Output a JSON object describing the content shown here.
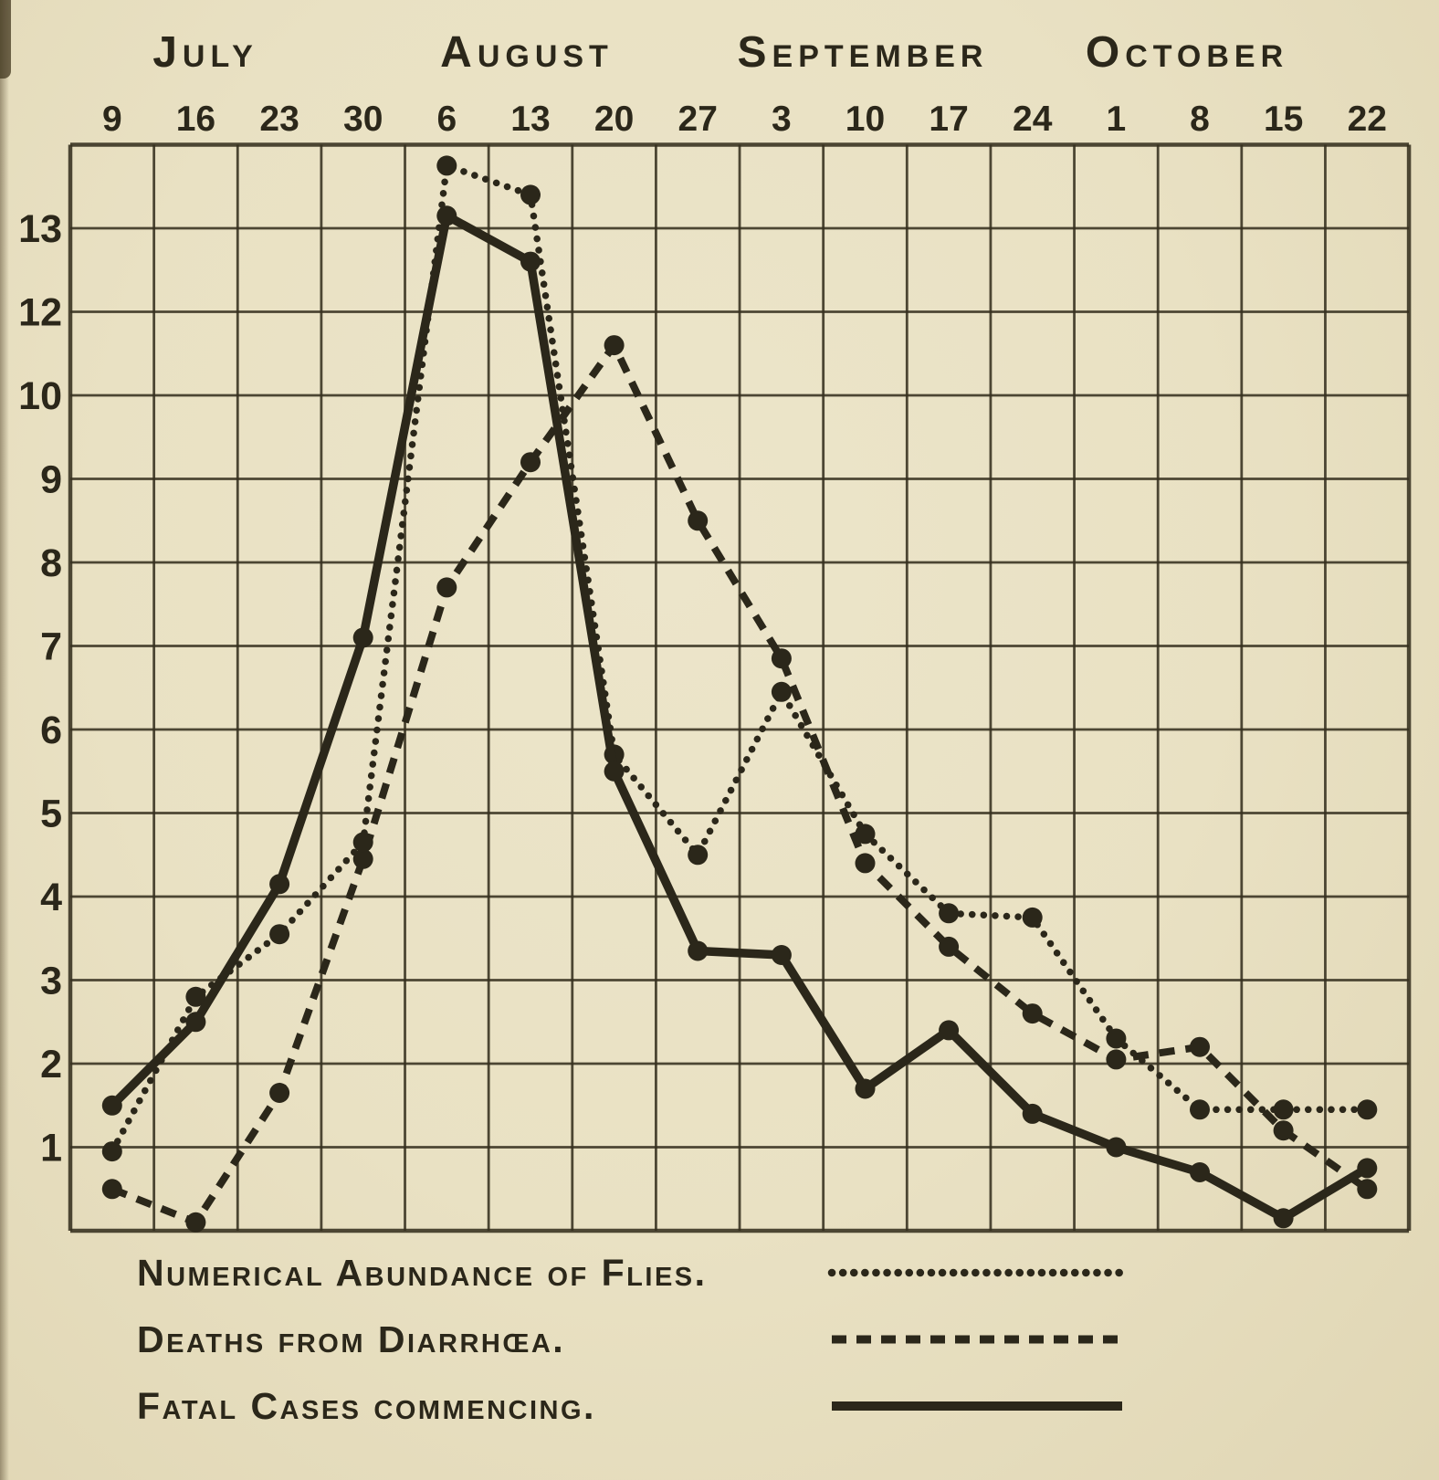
{
  "page": {
    "paper_color": "#e9e1c3",
    "ink_color": "#2b271a"
  },
  "chart_data": {
    "type": "line",
    "title": "",
    "x_axis": {
      "months": [
        {
          "label": "July",
          "dates": [
            "9",
            "16",
            "23",
            "30"
          ]
        },
        {
          "label": "August",
          "dates": [
            "6",
            "13",
            "20",
            "27"
          ]
        },
        {
          "label": "September",
          "dates": [
            "3",
            "10",
            "17",
            "24"
          ]
        },
        {
          "label": "October",
          "dates": [
            "1",
            "8",
            "15",
            "22"
          ]
        }
      ],
      "tick_labels": [
        "9",
        "16",
        "23",
        "30",
        "6",
        "13",
        "20",
        "27",
        "3",
        "10",
        "17",
        "24",
        "1",
        "8",
        "15",
        "22"
      ]
    },
    "y_axis": {
      "tick_labels_top_to_bottom": [
        "13",
        "12",
        "10",
        "9",
        "8",
        "7",
        "6",
        "5",
        "4",
        "3",
        "2",
        "1"
      ],
      "gridlines_evenly_spaced": true,
      "note": "label 11 omitted between 10 and 12 in the original print"
    },
    "series": [
      {
        "name": "Numerical Abundance of Flies.",
        "line_style": "dotted",
        "values": [
          0.95,
          2.8,
          3.55,
          4.65,
          13.75,
          13.4,
          5.7,
          4.5,
          6.45,
          4.75,
          3.8,
          3.75,
          2.3,
          1.45,
          1.45,
          1.45
        ]
      },
      {
        "name": "Deaths from Diarrhœa.",
        "line_style": "dashed",
        "values": [
          0.5,
          0.1,
          1.65,
          4.45,
          7.7,
          9.2,
          11.2,
          8.5,
          6.85,
          4.4,
          3.4,
          2.6,
          2.05,
          2.2,
          1.2,
          0.5
        ]
      },
      {
        "name": "Fatal Cases commencing.",
        "line_style": "solid",
        "values": [
          1.5,
          2.5,
          4.15,
          7.1,
          13.15,
          12.6,
          5.5,
          3.35,
          3.3,
          1.7,
          2.4,
          1.4,
          1.0,
          0.7,
          0.15,
          0.75
        ]
      }
    ],
    "legend_position": "bottom-left"
  }
}
